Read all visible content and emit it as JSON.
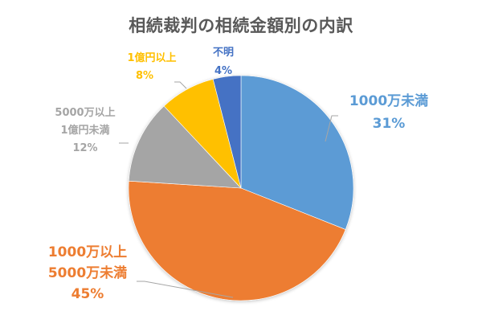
{
  "chart_data": {
    "type": "pie",
    "title": "相続裁判の相続金額別の内訳",
    "start_angle_deg": 0,
    "direction": "clockwise",
    "categories": [
      "1000万未満",
      "1000万以上5000万未満",
      "5000万以上1億円未満",
      "1億円以上",
      "不明"
    ],
    "values": [
      31,
      45,
      12,
      8,
      4
    ],
    "unit": "%",
    "colors": [
      "#5B9BD5",
      "#ED7D31",
      "#A5A5A5",
      "#FFC000",
      "#4472C4"
    ],
    "legend": "none",
    "data_labels": "category name and percentage, outside end with leader lines"
  },
  "labels": {
    "s0": {
      "line1": "1000万未満",
      "pct": "31%"
    },
    "s1": {
      "line1": "1000万以上",
      "line2": "5000万未満",
      "pct": "45%"
    },
    "s2": {
      "line1": "5000万以上",
      "line2": "1億円未満",
      "pct": "12%"
    },
    "s3": {
      "line1": "1億円以上",
      "pct": "8%"
    },
    "s4": {
      "line1": "不明",
      "pct": "4%"
    }
  },
  "colors": {
    "title": "#595959",
    "leader_line": "#A6A6A6",
    "background": "#FFFFFF"
  }
}
